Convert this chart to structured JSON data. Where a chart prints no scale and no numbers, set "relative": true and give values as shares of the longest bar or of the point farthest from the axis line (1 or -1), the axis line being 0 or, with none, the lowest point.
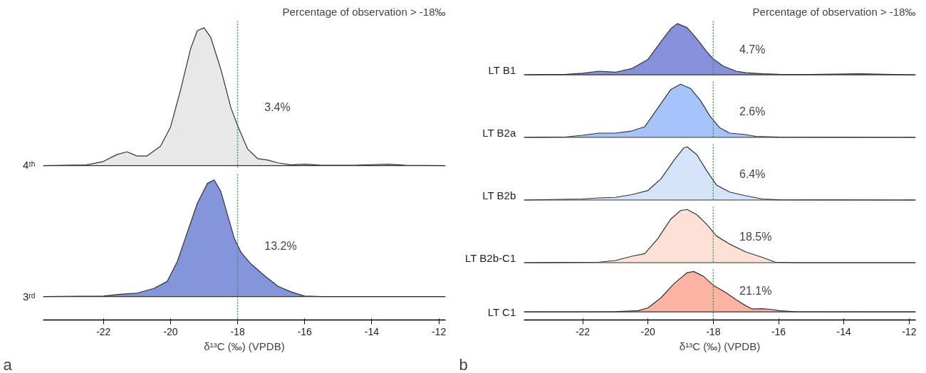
{
  "chart_data": [
    {
      "type": "area",
      "relative": true,
      "title": "Percentage of observation > -18‰",
      "ylabel": "4ᵗʰ",
      "annotations": [
        "3.4%"
      ],
      "xlim": [
        -23.8,
        -11.8
      ],
      "tick_labels": false,
      "ref_lines": [
        {
          "axis": "x",
          "value": -18,
          "color": "#22aa44",
          "line_style": "dotted"
        }
      ],
      "x": [
        -23.8,
        -22.5,
        -22,
        -21.6,
        -21.3,
        -21,
        -20.7,
        -20.3,
        -20,
        -19.7,
        -19.4,
        -19.2,
        -19.0,
        -18.8,
        -18.5,
        -18.2,
        -18,
        -17.7,
        -17.4,
        -17.1,
        -16.8,
        -16.4,
        -16,
        -15.5,
        -14.5,
        -13.5,
        -13,
        -11.8
      ],
      "series": [
        {
          "color": "#e8e8e8",
          "values": [
            0,
            0.005,
            0.03,
            0.08,
            0.1,
            0.07,
            0.07,
            0.14,
            0.28,
            0.55,
            0.85,
            0.98,
            1,
            0.93,
            0.7,
            0.42,
            0.29,
            0.12,
            0.05,
            0.04,
            0.02,
            0.005,
            0.01,
            0.003,
            0.003,
            0.01,
            0.003,
            0
          ]
        }
      ]
    },
    {
      "type": "area",
      "relative": true,
      "ylabel": "3ʳᵈ",
      "xlabel": "δ¹³C (‰) (VPDB)",
      "annotations": [
        "13.2%",
        "a"
      ],
      "xlim": [
        -23.8,
        -11.8
      ],
      "xticks": [
        -22,
        -20,
        -18,
        -16,
        -14,
        -12
      ],
      "tick_labels": "x",
      "ref_lines": [
        {
          "axis": "x",
          "value": -18,
          "color": "#22aa44",
          "line_style": "dotted"
        }
      ],
      "x": [
        -23.8,
        -22,
        -21.5,
        -21,
        -20.5,
        -20.1,
        -19.8,
        -19.5,
        -19.2,
        -18.9,
        -18.7,
        -18.5,
        -18.3,
        -18.1,
        -17.9,
        -17.6,
        -17.2,
        -16.8,
        -16.4,
        -16,
        -15.5,
        -11.8
      ],
      "series": [
        {
          "color": "#8595db",
          "values": [
            0,
            0.005,
            0.02,
            0.03,
            0.07,
            0.13,
            0.3,
            0.55,
            0.8,
            0.97,
            1,
            0.9,
            0.7,
            0.5,
            0.38,
            0.28,
            0.18,
            0.09,
            0.04,
            0.005,
            0,
            0
          ]
        }
      ]
    },
    {
      "type": "area",
      "relative": true,
      "title": "Percentage of observation > -18‰",
      "ylabel": "LT B1",
      "annotations": [
        "4.7%"
      ],
      "xlim": [
        -23.8,
        -11.8
      ],
      "tick_labels": false,
      "ref_lines": [
        {
          "axis": "x",
          "value": -18,
          "color": "#22aa44",
          "line_style": "dotted"
        }
      ],
      "x": [
        -23.8,
        -22.5,
        -22,
        -21.5,
        -21,
        -20.5,
        -20,
        -19.6,
        -19.3,
        -19.1,
        -18.8,
        -18.5,
        -18.2,
        -18,
        -17.7,
        -17.3,
        -17,
        -16.5,
        -16,
        -15,
        -13.5,
        -12.5,
        -11.8
      ],
      "series": [
        {
          "color": "#8592db",
          "values": [
            0,
            0.01,
            0.03,
            0.07,
            0.05,
            0.12,
            0.3,
            0.65,
            0.9,
            1,
            0.92,
            0.7,
            0.45,
            0.31,
            0.17,
            0.07,
            0.04,
            0.02,
            0.01,
            0.005,
            0.02,
            0.005,
            0
          ]
        }
      ]
    },
    {
      "type": "area",
      "relative": true,
      "ylabel": "LT B2a",
      "annotations": [
        "2.6%"
      ],
      "xlim": [
        -23.8,
        -11.8
      ],
      "tick_labels": false,
      "ref_lines": [
        {
          "axis": "x",
          "value": -18,
          "color": "#22aa44",
          "line_style": "dotted"
        }
      ],
      "x": [
        -23.8,
        -22.5,
        -22,
        -21.5,
        -21,
        -20.5,
        -20.1,
        -19.7,
        -19.3,
        -19.0,
        -18.7,
        -18.4,
        -18.1,
        -17.8,
        -17.5,
        -17.1,
        -16.7,
        -16,
        -11.8
      ],
      "series": [
        {
          "color": "#a6c4fa",
          "values": [
            0,
            0.01,
            0.04,
            0.08,
            0.08,
            0.12,
            0.2,
            0.55,
            0.9,
            1,
            0.92,
            0.7,
            0.4,
            0.18,
            0.08,
            0.06,
            0.02,
            0.005,
            0
          ]
        }
      ]
    },
    {
      "type": "area",
      "relative": true,
      "ylabel": "LT B2b",
      "annotations": [
        "6.4%"
      ],
      "xlim": [
        -23.8,
        -11.8
      ],
      "tick_labels": false,
      "ref_lines": [
        {
          "axis": "x",
          "value": -18,
          "color": "#22aa44",
          "line_style": "dotted"
        }
      ],
      "x": [
        -23.8,
        -22,
        -21.5,
        -21,
        -20.5,
        -20,
        -19.6,
        -19.2,
        -18.9,
        -18.8,
        -18.5,
        -18.2,
        -17.9,
        -17.5,
        -17,
        -16.5,
        -16,
        -11.8
      ],
      "series": [
        {
          "color": "#d4e3f7",
          "values": [
            0,
            0.02,
            0.04,
            0.05,
            0.1,
            0.18,
            0.4,
            0.75,
            0.98,
            1,
            0.85,
            0.55,
            0.28,
            0.15,
            0.08,
            0.02,
            0.005,
            0
          ]
        }
      ]
    },
    {
      "type": "area",
      "relative": true,
      "ylabel": "LT B2b-C1",
      "annotations": [
        "18.5%"
      ],
      "xlim": [
        -23.8,
        -11.8
      ],
      "tick_labels": false,
      "ref_lines": [
        {
          "axis": "x",
          "value": -18,
          "color": "#22aa44",
          "line_style": "dotted"
        }
      ],
      "x": [
        -23.8,
        -21.5,
        -21,
        -20.5,
        -20.1,
        -19.7,
        -19.3,
        -19,
        -18.8,
        -18.5,
        -18.2,
        -17.9,
        -17.5,
        -17,
        -16.5,
        -16.1,
        -15.5,
        -11.8
      ],
      "series": [
        {
          "color": "#fde0d6",
          "values": [
            0,
            0.01,
            0.04,
            0.12,
            0.17,
            0.45,
            0.82,
            0.98,
            1,
            0.9,
            0.72,
            0.5,
            0.35,
            0.2,
            0.1,
            0.01,
            0,
            0
          ]
        }
      ]
    },
    {
      "type": "area",
      "relative": true,
      "ylabel": "LT C1",
      "xlabel": "δ¹³C (‰) (VPDB)",
      "annotations": [
        "21.1%",
        "b"
      ],
      "xlim": [
        -23.8,
        -11.8
      ],
      "xticks": [
        -22,
        -20,
        -18,
        -16,
        -14,
        -12
      ],
      "tick_labels": "x",
      "ref_lines": [
        {
          "axis": "x",
          "value": -18,
          "color": "#22aa44",
          "line_style": "dotted"
        }
      ],
      "x": [
        -23.8,
        -21,
        -20.3,
        -20,
        -19.6,
        -19.2,
        -18.8,
        -18.6,
        -18.3,
        -18,
        -17.6,
        -17.3,
        -17,
        -16.8,
        -16.5,
        -16.2,
        -16,
        -15.5,
        -11.8
      ],
      "series": [
        {
          "color": "#fbb4a3",
          "values": [
            0,
            0.005,
            0.03,
            0.1,
            0.35,
            0.7,
            0.97,
            1,
            0.88,
            0.66,
            0.47,
            0.3,
            0.15,
            0.07,
            0.08,
            0.06,
            0.03,
            0.005,
            0
          ]
        }
      ]
    }
  ]
}
